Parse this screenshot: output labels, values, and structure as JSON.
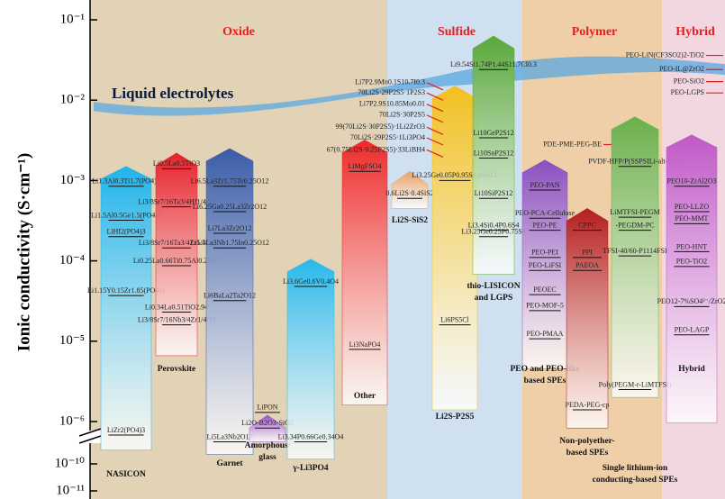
{
  "chart_data": {
    "type": "range-arrows",
    "ylabel": "Ionic conductivity (S·cm⁻¹)",
    "log_scale": true,
    "axis_break": true,
    "ylim": [
      1e-11,
      0.1
    ],
    "yticks": [
      {
        "value": 0.1,
        "label": "10⁻¹"
      },
      {
        "value": 0.01,
        "label": "10⁻²"
      },
      {
        "value": 0.001,
        "label": "10⁻³"
      },
      {
        "value": 0.0001,
        "label": "10⁻⁴"
      },
      {
        "value": 1e-05,
        "label": "10⁻⁵"
      },
      {
        "value": 1e-06,
        "label": "10⁻⁶"
      },
      {
        "value": 1e-10,
        "label": "10⁻¹⁰"
      },
      {
        "value": 1e-11,
        "label": "10⁻¹¹"
      }
    ],
    "sections": [
      {
        "name": "Oxide"
      },
      {
        "name": "Sulfide"
      },
      {
        "name": "Polymer"
      },
      {
        "name": "Hybrid"
      }
    ],
    "liquid": {
      "label": "Liquid electrolytes",
      "value": 0.01
    },
    "groups": [
      {
        "label": [
          "NASICON"
        ],
        "color": "#1fb4ea",
        "range": [
          4.4e-07,
          0.0015
        ],
        "materials": [
          {
            "name": "Li1.3Al0.3Ti1.7(PO4)3",
            "value": 0.00085
          },
          {
            "name": "Li1.5Al0.5Ge1.5(PO4)3",
            "value": 0.00032
          },
          {
            "name": "LiHf2(PO4)3",
            "value": 0.0002
          },
          {
            "name": "Li1.15Y0.15Zr1.85(PO4)3",
            "value": 3.7e-05
          },
          {
            "name": "LiZr2(PO4)3",
            "value": 6.8e-07
          }
        ]
      },
      {
        "label": [
          "Perovskite"
        ],
        "color": "#e8202a",
        "range": [
          6.6e-06,
          0.0022
        ],
        "materials": [
          {
            "name": "Li0.5La0.5TiO3",
            "value": 0.0014
          },
          {
            "name": "Li3/8Sr7/16Ta3/4Hf1/4O3",
            "value": 0.00047
          },
          {
            "name": "Li3/8Sr7/16Ta3/4Zr1/4O3",
            "value": 0.000145
          },
          {
            "name": "Li0.25La0.66Ti0.75Al0.25O3",
            "value": 8.7e-05
          },
          {
            "name": "Li0.34La0.51TiO2.94",
            "value": 2.3e-05
          },
          {
            "name": "Li3/8Sr7/16Nb3/4Zr1/4O3",
            "value": 1.6e-05
          }
        ]
      },
      {
        "label": [
          "Garnet"
        ],
        "color": "#3a5ca8",
        "range": [
          3.9e-07,
          0.0025
        ],
        "materials": [
          {
            "name": "Li6.5La3Zr1.75Te0.25O12",
            "value": 0.00085
          },
          {
            "name": "Li6.25Ga0.25La3Zr2O12",
            "value": 0.00041
          },
          {
            "name": "Li7La3Zr2O12",
            "value": 0.00022
          },
          {
            "name": "Li5.5La3Nb1.75In0.25O12",
            "value": 0.000145
          },
          {
            "name": "Li6BaLa2Ta2O12",
            "value": 3.2e-05
          },
          {
            "name": "Li5La3Nb2O12",
            "value": 5.6e-07
          }
        ]
      },
      {
        "label": [
          "Amorphous/",
          "glass"
        ],
        "color": "#9a4fc8",
        "range": [
          5.6e-07,
          1.2e-06
        ],
        "materials": [
          {
            "name": "LiPON",
            "value": 1.3e-06
          },
          {
            "name": "Li2O-B2O3-SiO2",
            "value": 8.3e-07
          }
        ]
      },
      {
        "label": [
          "γ-Li3PO4"
        ],
        "color": "#28b8ec",
        "range": [
          3.4e-07,
          0.000105
        ],
        "materials": [
          {
            "name": "Li3.6Ge0.6V0.4O4",
            "value": 4.8e-05
          },
          {
            "name": "Li3.34P0.66Ge0.34O4",
            "value": 5.6e-07
          }
        ]
      },
      {
        "label": [
          "Other"
        ],
        "color": "#ee2a2a",
        "range": [
          1.6e-06,
          0.0032
        ],
        "materials": [
          {
            "name": "LiMgFSO4",
            "value": 0.0013
          },
          {
            "name": "Li3NaPO4",
            "value": 7.9e-06
          }
        ]
      },
      {
        "label": [
          "Li2S-SiS2"
        ],
        "color": "#e8a060",
        "range": [
          0.00045,
          0.0013
        ],
        "materials": [
          {
            "name": "0.6Li2S·0.4SiS2",
            "value": 0.0006
          }
        ]
      },
      {
        "label": [
          "Li2S-P2S5"
        ],
        "color": "#f2c020",
        "range": [
          1.4e-06,
          0.015
        ],
        "materials": [
          {
            "name": "Li3.25Ge0.05P0.95S3.8Se0.1",
            "value": 0.001
          },
          {
            "name": "Li6PS5Cl",
            "value": 1.6e-05
          }
        ],
        "callouts": [
          {
            "name": "Li7P2.9Mn0.1S10.7I0.3",
            "value": 0.0165
          },
          {
            "name": "70Li2S·29P2S5·1P2S3",
            "value": 0.0123
          },
          {
            "name": "Li7P2.9S10.85Mo0.01",
            "value": 0.0089
          },
          {
            "name": "70Li2S·30P2S5",
            "value": 0.0065
          },
          {
            "name": "99(70Li2S·30P2S5)·1Li2ZrO3",
            "value": 0.0046
          },
          {
            "name": "70Li2S·29P2S5·1Li3PO4",
            "value": 0.0034
          },
          {
            "name": "67(0.75Li2S·0.25P2S5)·33LiBH4",
            "value": 0.0024
          }
        ]
      },
      {
        "label": [
          "thio-LISICON",
          "and LGPS"
        ],
        "color": "#5aa83a",
        "range": [
          6.8e-05,
          0.063
        ],
        "materials": [
          {
            "name": "Li9.54Si1.74P1.44S11.7Cl0.3",
            "value": 0.024
          },
          {
            "name": "Li10GeP2S12",
            "value": 0.0034
          },
          {
            "name": "Li10SnP2S12",
            "value": 0.0019
          },
          {
            "name": "Li10SiP2S12",
            "value": 0.0006
          },
          {
            "name": "Li3.4Si0.4P0.6S4",
            "value": 0.00024
          },
          {
            "name": "Li3.25Ge0.25P0.75S4",
            "value": 0.0002
          }
        ]
      },
      {
        "label": [
          "PEO and PEO-like",
          "based SPEs"
        ],
        "color": "#8a4fc0",
        "range": [
          4.5e-06,
          0.0018
        ],
        "materials": [
          {
            "name": "PEO-PAN",
            "value": 0.00076
          },
          {
            "name": "PEO-PCA-Cellulose",
            "value": 0.00034
          },
          {
            "name": "PEO-PE",
            "value": 0.00024
          },
          {
            "name": "PEO-PEI",
            "value": 0.00011
          },
          {
            "name": "PEO-LiFSI",
            "value": 7.6e-05
          },
          {
            "name": "PEOEC",
            "value": 3.8e-05
          },
          {
            "name": "PEO-MOF-5",
            "value": 2.4e-05
          },
          {
            "name": "PEO-PMAA",
            "value": 1.07e-05
          }
        ]
      },
      {
        "label": [
          "Non-polyether-",
          "based SPEs"
        ],
        "color": "#b41e1e",
        "range": [
          8.3e-07,
          0.00045
        ],
        "materials": [
          {
            "name": "CPPC",
            "value": 0.00024
          },
          {
            "name": "PPI",
            "value": 0.00011
          },
          {
            "name": "PAEOA",
            "value": 7.6e-05
          },
          {
            "name": "PEDA-PEG-cp",
            "value": 1.4e-06
          }
        ],
        "callouts": [
          {
            "name": "PDE-PME-PEG-BE",
            "value": 0.0028
          }
        ]
      },
      {
        "label": [
          "Single lithium-ion",
          "conducting-based SPEs"
        ],
        "color": "#6ab04c",
        "range": [
          2e-06,
          0.0062
        ],
        "materials": [
          {
            "name": "PVDF-HFP/P(SSPSILi-alt-MA)",
            "value": 0.0015
          },
          {
            "name": "LiMTFSI-PEGM",
            "value": 0.00035
          },
          {
            "name": "-PEGDM-PC",
            "value": 0.00024
          },
          {
            "name": "TFSI-40/60-P1114FSI",
            "value": 0.000115
          },
          {
            "name": "Poly(PEGM-r-LiMTFSI)",
            "value": 2.5e-06
          }
        ]
      },
      {
        "label": [
          "Hybrid"
        ],
        "color": "#c058c8",
        "range": [
          9.6e-07,
          0.0037
        ],
        "materials": [
          {
            "name": "PEO10-ZrAl2O3",
            "value": 0.00085
          },
          {
            "name": "PEO-LLZO",
            "value": 0.00041
          },
          {
            "name": "PEO-MMT",
            "value": 0.00029
          },
          {
            "name": "PEO-HNT",
            "value": 0.00013
          },
          {
            "name": "PEO-TiO2",
            "value": 8.5e-05
          },
          {
            "name": "PEO12-7%SO4²⁻/ZrO2",
            "value": 2.7e-05
          },
          {
            "name": "PEO-LAGP",
            "value": 1.2e-05
          }
        ],
        "callouts": [
          {
            "name": "PEO-LiN(CF3SO2)2-TiO2",
            "value": 0.036
          },
          {
            "name": "PEO-IL@ZrO2",
            "value": 0.024
          },
          {
            "name": "PEO-SiO2",
            "value": 0.017
          },
          {
            "name": "PEO-LGPS",
            "value": 0.0123
          }
        ]
      }
    ]
  }
}
